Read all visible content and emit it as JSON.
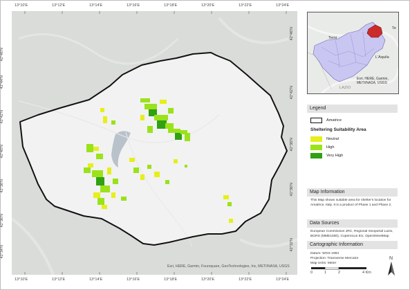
{
  "map": {
    "attribution": "Esri, HERE, Garmin, Foursquare, GeoTechnologies, Inc, METI/NASA, USGS",
    "lon_labels": [
      "13°10'E",
      "13°12'E",
      "13°14'E",
      "13°16'E",
      "13°18'E",
      "13°20'E",
      "13°22'E",
      "13°24'E"
    ],
    "lat_labels": [
      "42°46'N",
      "42°44'N",
      "42°42'N",
      "42°40'N",
      "42°38'N",
      "42°36'N",
      "42°34'N",
      "42°32'N"
    ]
  },
  "inset": {
    "labels": {
      "terni": "Terni",
      "laquila": "L'Aquila",
      "lazio": "LAZIO",
      "te": "Te"
    },
    "attribution": "Esri, HERE, Garmin, METI/NASA, USGS"
  },
  "legend": {
    "title": "Legend",
    "boundary_label": "Amatrice",
    "suitability_title": "Sheltering Suitability Area",
    "classes": [
      {
        "label": "Neutral",
        "color": "#e6ef1a"
      },
      {
        "label": "High",
        "color": "#9be21a"
      },
      {
        "label": "Very High",
        "color": "#2fa112"
      }
    ]
  },
  "info": {
    "title": "Map Information",
    "text": "This Map shows suitable area for shelter's location for Amatrice, Italy. It is a product of Phase 1 and Phase 2."
  },
  "sources": {
    "title": "Data Sources",
    "text": "European Commission JRC, Regional Geoportal Lazio, BGRS (MME1500), Copernicus EU, OpenStreetMap"
  },
  "carto": {
    "title": "Cartographic Information",
    "datum": "Datum: WGS 1984",
    "projection": "Projection: Transverse Mercator",
    "units": "Map Units: Meter"
  },
  "scale": {
    "labels": [
      "0",
      "1",
      "2",
      "4 Km"
    ]
  },
  "north": {
    "label": "N"
  },
  "colors": {
    "boundary": "#111111",
    "basemap": "#d9dcd8",
    "inside": "#f2f2f2",
    "water": "#b9c2ca",
    "inset_region": "#c9c6f2",
    "inset_highlight": "#cc2b2b"
  }
}
